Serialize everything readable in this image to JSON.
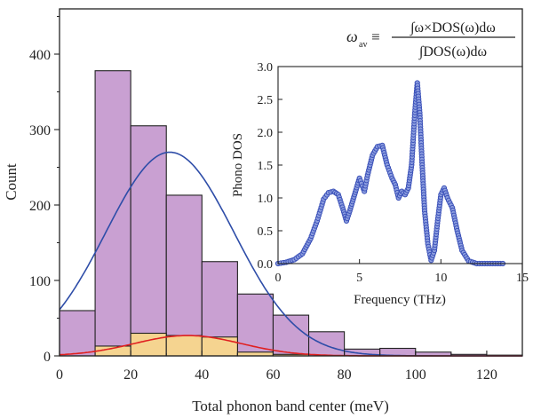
{
  "chart_data": [
    {
      "type": "bar",
      "xlabel": "Total phonon band center (meV)",
      "ylabel": "Count",
      "xlim": [
        0,
        130
      ],
      "ylim": [
        0,
        460
      ],
      "x_ticks": [
        "0",
        "20",
        "40",
        "60",
        "80",
        "100",
        "120"
      ],
      "y_ticks": [
        "0",
        "100",
        "200",
        "300",
        "400"
      ],
      "bin_edges": [
        0,
        10,
        20,
        30,
        40,
        50,
        60,
        70,
        80,
        90,
        100,
        110,
        120,
        130
      ],
      "series": [
        {
          "values": [
            60,
            378,
            305,
            213,
            125,
            82,
            54,
            32,
            9,
            10,
            5,
            2,
            1
          ],
          "color": "#c9a0d2"
        },
        {
          "values": [
            0,
            13,
            30,
            27,
            25,
            5,
            2,
            0,
            0,
            0,
            0,
            0,
            0
          ],
          "color": "#f5d490"
        }
      ],
      "fit_curves": [
        {
          "mean": 31,
          "sigma": 18,
          "peak": 270,
          "color": "#2e4da8"
        },
        {
          "mean": 36,
          "sigma": 15,
          "peak": 27,
          "color": "#e02020"
        }
      ],
      "formula": {
        "lhs": "ω",
        "lhs_sub": "av",
        "equiv": "≡",
        "numerator": "∫ω×DOS(ω)dω",
        "denominator": "∫DOS(ω)dω"
      }
    },
    {
      "type": "scatter",
      "xlabel": "Frequency (THz)",
      "ylabel": "Phono DOS",
      "xlim": [
        0,
        15
      ],
      "ylim": [
        0,
        3.0
      ],
      "x_ticks": [
        "0",
        "5",
        "10",
        "15"
      ],
      "y_ticks": [
        "0.0",
        "0.5",
        "1.0",
        "1.5",
        "2.0",
        "2.5",
        "3.0"
      ],
      "color": "#3a50b8",
      "points": [
        [
          0,
          0
        ],
        [
          0.5,
          0.02
        ],
        [
          1,
          0.06
        ],
        [
          1.5,
          0.15
        ],
        [
          2,
          0.38
        ],
        [
          2.4,
          0.65
        ],
        [
          2.8,
          0.98
        ],
        [
          3.1,
          1.08
        ],
        [
          3.4,
          1.1
        ],
        [
          3.7,
          1.05
        ],
        [
          4.0,
          0.82
        ],
        [
          4.2,
          0.65
        ],
        [
          4.4,
          0.8
        ],
        [
          4.7,
          1.05
        ],
        [
          5.0,
          1.3
        ],
        [
          5.3,
          1.1
        ],
        [
          5.5,
          1.35
        ],
        [
          5.8,
          1.65
        ],
        [
          6.1,
          1.78
        ],
        [
          6.4,
          1.8
        ],
        [
          6.7,
          1.5
        ],
        [
          7.0,
          1.3
        ],
        [
          7.2,
          1.2
        ],
        [
          7.4,
          1.0
        ],
        [
          7.6,
          1.1
        ],
        [
          7.8,
          1.05
        ],
        [
          8.0,
          1.15
        ],
        [
          8.2,
          1.5
        ],
        [
          8.4,
          2.3
        ],
        [
          8.55,
          2.75
        ],
        [
          8.7,
          2.3
        ],
        [
          8.85,
          1.5
        ],
        [
          9.0,
          0.8
        ],
        [
          9.2,
          0.3
        ],
        [
          9.4,
          0.05
        ],
        [
          9.6,
          0.2
        ],
        [
          9.8,
          0.65
        ],
        [
          10.0,
          1.05
        ],
        [
          10.2,
          1.15
        ],
        [
          10.4,
          1.0
        ],
        [
          10.7,
          0.85
        ],
        [
          11.0,
          0.5
        ],
        [
          11.3,
          0.2
        ],
        [
          11.7,
          0.04
        ],
        [
          12.2,
          0
        ],
        [
          13,
          0
        ],
        [
          13.8,
          0
        ]
      ]
    }
  ]
}
